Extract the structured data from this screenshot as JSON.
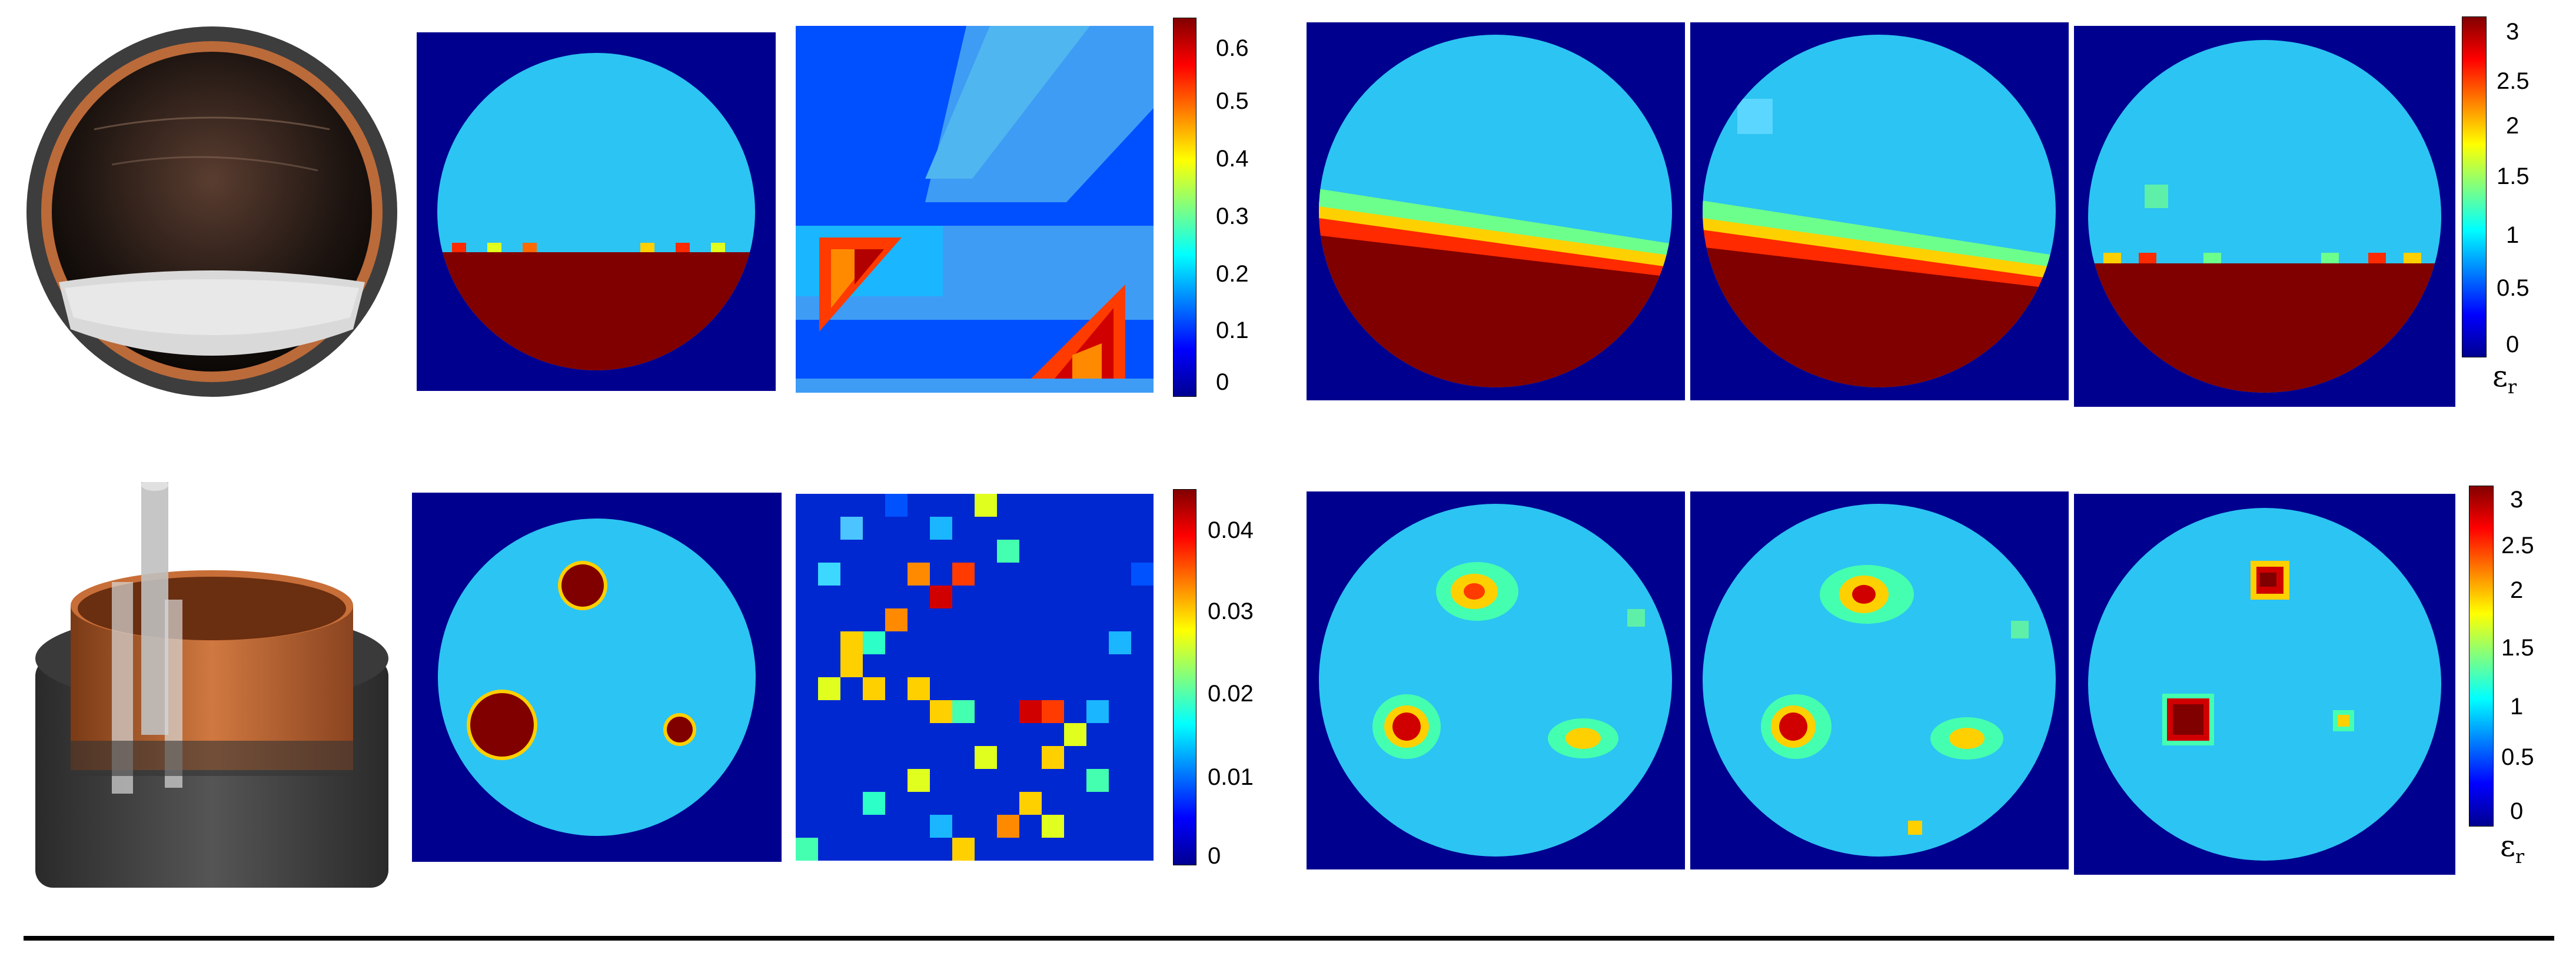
{
  "rows": [
    {
      "id": "row-1",
      "photo": {
        "name": "tank-with-granular-fill-photo",
        "description_icon": "photo"
      },
      "permittivity_scale": {
        "unit_symbol": "ε",
        "unit_subscript": "r",
        "ticks": [
          "3",
          "2.5",
          "2",
          "1.5",
          "1",
          "0.5",
          "0"
        ],
        "range": [
          0,
          3.2
        ]
      },
      "sensitivity_scale": {
        "ticks": [
          "0.6",
          "0.5",
          "0.4",
          "0.3",
          "0.2",
          "0.1",
          "0"
        ],
        "range": [
          0,
          0.65
        ]
      }
    },
    {
      "id": "row-2",
      "photo": {
        "name": "tank-with-three-rods-photo",
        "description_icon": "photo"
      },
      "permittivity_scale": {
        "unit_symbol": "ε",
        "unit_subscript": "r",
        "ticks": [
          "3",
          "2.5",
          "2",
          "1.5",
          "1",
          "0.5",
          "0"
        ],
        "range": [
          0,
          3.2
        ]
      },
      "sensitivity_scale": {
        "ticks": [
          "0.04",
          "0.03",
          "0.02",
          "0.01",
          "0"
        ],
        "range": [
          0,
          0.045
        ]
      }
    }
  ],
  "colors": {
    "background": "#00008f",
    "matrix": "#2cc4f2",
    "high": "#800000",
    "rule": "#000000"
  }
}
